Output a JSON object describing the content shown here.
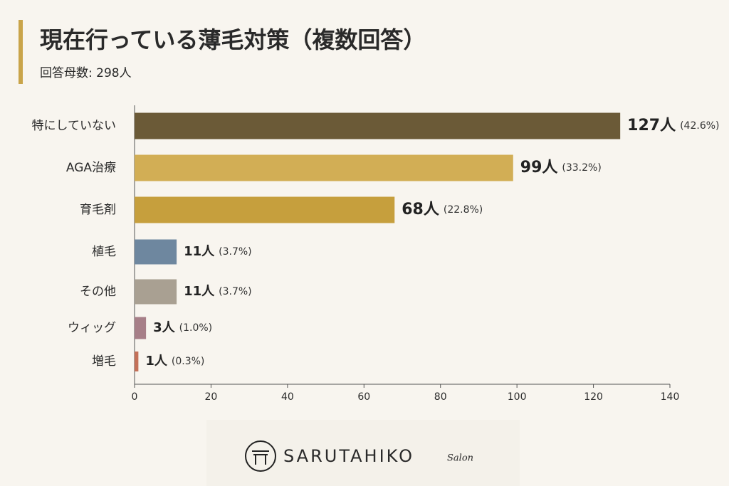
{
  "chart_data": {
    "type": "bar",
    "orientation": "horizontal",
    "title": "現在行っている薄毛対策（複数回答）",
    "subtitle": "回答母数: 298人",
    "categories": [
      "特にしていない",
      "AGA治療",
      "育毛剤",
      "植毛",
      "その他",
      "ウィッグ",
      "増毛"
    ],
    "values": [
      127,
      99,
      68,
      11,
      11,
      3,
      1
    ],
    "value_labels": [
      "127人",
      "99人",
      "68人",
      "11人",
      "11人",
      "3人",
      "1人"
    ],
    "share_labels": [
      "(42.6%)",
      "(33.2%)",
      "(22.8%)",
      "(3.7%)",
      "(3.7%)",
      "(1.0%)",
      "(0.3%)"
    ],
    "colors": [
      "#6b5a37",
      "#d2ae55",
      "#c69f3d",
      "#6e879f",
      "#a9a092",
      "#a77f88",
      "#c47058"
    ],
    "xlim": [
      0,
      140
    ],
    "xticks": [
      0,
      20,
      40,
      60,
      80,
      100,
      120,
      140
    ],
    "grid": false
  },
  "footer": {
    "brand": "SARUTAHIKO",
    "sub": "Salon"
  }
}
